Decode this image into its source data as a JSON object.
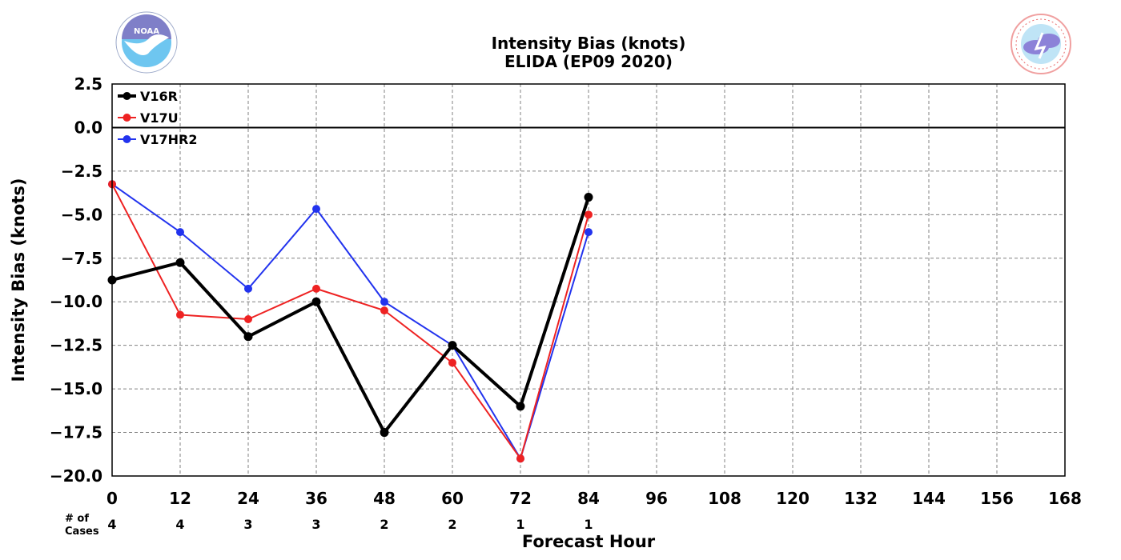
{
  "chart_data": {
    "type": "line",
    "title": "Intensity Bias (knots)",
    "subtitle": "ELIDA (EP09 2020)",
    "xlabel": "Forecast Hour",
    "ylabel": "Intensity Bias (knots)",
    "xlim": [
      0,
      168
    ],
    "ylim": [
      -20,
      2.5
    ],
    "x_ticks": [
      "0",
      "12",
      "24",
      "36",
      "48",
      "60",
      "72",
      "84",
      "96",
      "108",
      "120",
      "132",
      "144",
      "156",
      "168"
    ],
    "y_ticks": [
      "2.5",
      "0.0",
      "−2.5",
      "−5.0",
      "−7.5",
      "−10.0",
      "−12.5",
      "−15.0",
      "−17.5",
      "−20.0"
    ],
    "grid": true,
    "legend_position": "top-left",
    "x": [
      0,
      12,
      24,
      36,
      48,
      60,
      72,
      84
    ],
    "series": [
      {
        "name": "V16R",
        "color": "#000000",
        "values": [
          -8.75,
          -7.75,
          -12.0,
          -10.0,
          -17.5,
          -12.5,
          -16.0,
          -4.0
        ]
      },
      {
        "name": "V17U",
        "color": "#ee2222",
        "values": [
          -3.25,
          -10.75,
          -11.0,
          -9.25,
          -10.5,
          -13.5,
          -19.0,
          -5.0
        ]
      },
      {
        "name": "V17HR2",
        "color": "#2233ee",
        "values": [
          -3.25,
          -6.0,
          -9.25,
          -4.67,
          -10.0,
          -12.5,
          -19.0,
          -6.0
        ]
      }
    ],
    "cases_label_line1": "# of",
    "cases_label_line2": "Cases",
    "cases": [
      "4",
      "4",
      "3",
      "3",
      "2",
      "2",
      "1",
      "1"
    ]
  },
  "logos": {
    "left": {
      "text": "NOAA",
      "icon": "noaa-logo-icon",
      "color": "#6ec6f0"
    },
    "right": {
      "text": "NATIONAL WEATHER SERVICE",
      "icon": "nws-logo-icon",
      "color": "#e86a6a"
    }
  }
}
